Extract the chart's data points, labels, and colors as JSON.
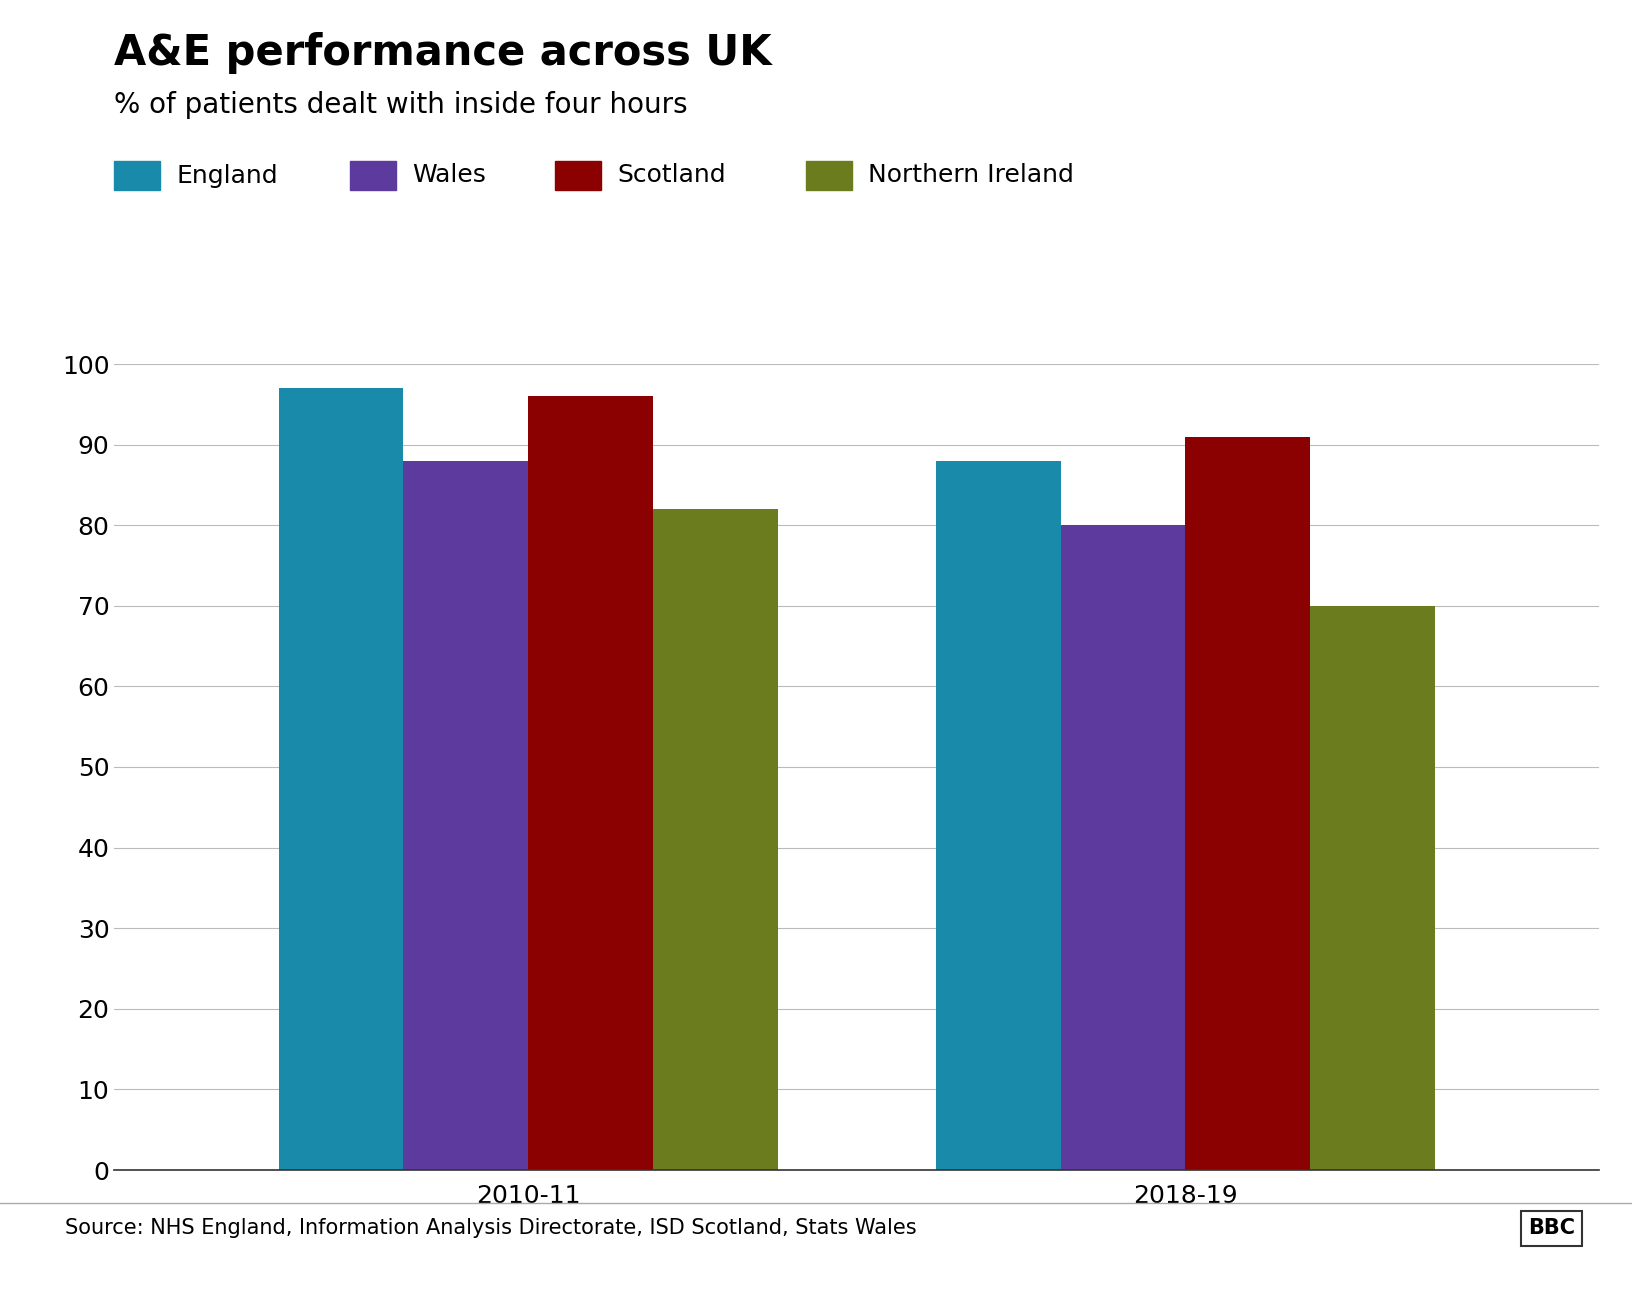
{
  "title": "A&E performance across UK",
  "subtitle": "% of patients dealt with inside four hours",
  "source": "Source: NHS England, Information Analysis Directorate, ISD Scotland, Stats Wales",
  "categories": [
    "2010-11",
    "2018-19"
  ],
  "series": [
    {
      "label": "England",
      "color": "#1a8aaa",
      "values": [
        97,
        88
      ]
    },
    {
      "label": "Wales",
      "color": "#5c3a9e",
      "values": [
        88,
        80
      ]
    },
    {
      "label": "Scotland",
      "color": "#8b0000",
      "values": [
        96,
        91
      ]
    },
    {
      "label": "Northern Ireland",
      "color": "#6b7c1e",
      "values": [
        82,
        70
      ]
    }
  ],
  "ylim": [
    0,
    100
  ],
  "yticks": [
    0,
    10,
    20,
    30,
    40,
    50,
    60,
    70,
    80,
    90,
    100
  ],
  "bar_width": 0.19,
  "title_fontsize": 30,
  "subtitle_fontsize": 20,
  "tick_fontsize": 18,
  "legend_fontsize": 18,
  "source_fontsize": 15,
  "background_color": "#ffffff",
  "grid_color": "#bbbbbb"
}
